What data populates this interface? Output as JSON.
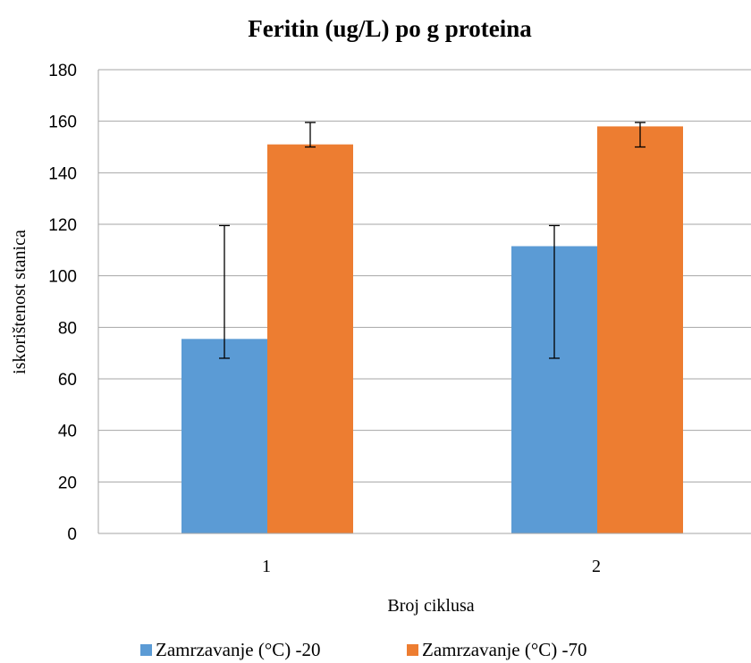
{
  "chart_data": {
    "type": "bar",
    "title": "Feritin (ug/L) po g proteina",
    "xlabel": "Broj ciklusa",
    "ylabel": "iskorištenost stanica",
    "categories": [
      "1",
      "2"
    ],
    "ylim": [
      0,
      180
    ],
    "yticks": [
      0,
      20,
      40,
      60,
      80,
      100,
      120,
      140,
      160,
      180
    ],
    "grid": true,
    "legend_position": "bottom",
    "series": [
      {
        "name": "Zamrzavanje (°C) -20",
        "color": "#5b9bd5",
        "values": [
          75.5,
          111.5
        ],
        "error_low": [
          68,
          68
        ],
        "error_high": [
          119.5,
          119.5
        ]
      },
      {
        "name": "Zamrzavanje (°C) -70",
        "color": "#ed7d31",
        "values": [
          151,
          158
        ],
        "error_low": [
          150,
          150
        ],
        "error_high": [
          159.5,
          159.5
        ]
      }
    ]
  }
}
